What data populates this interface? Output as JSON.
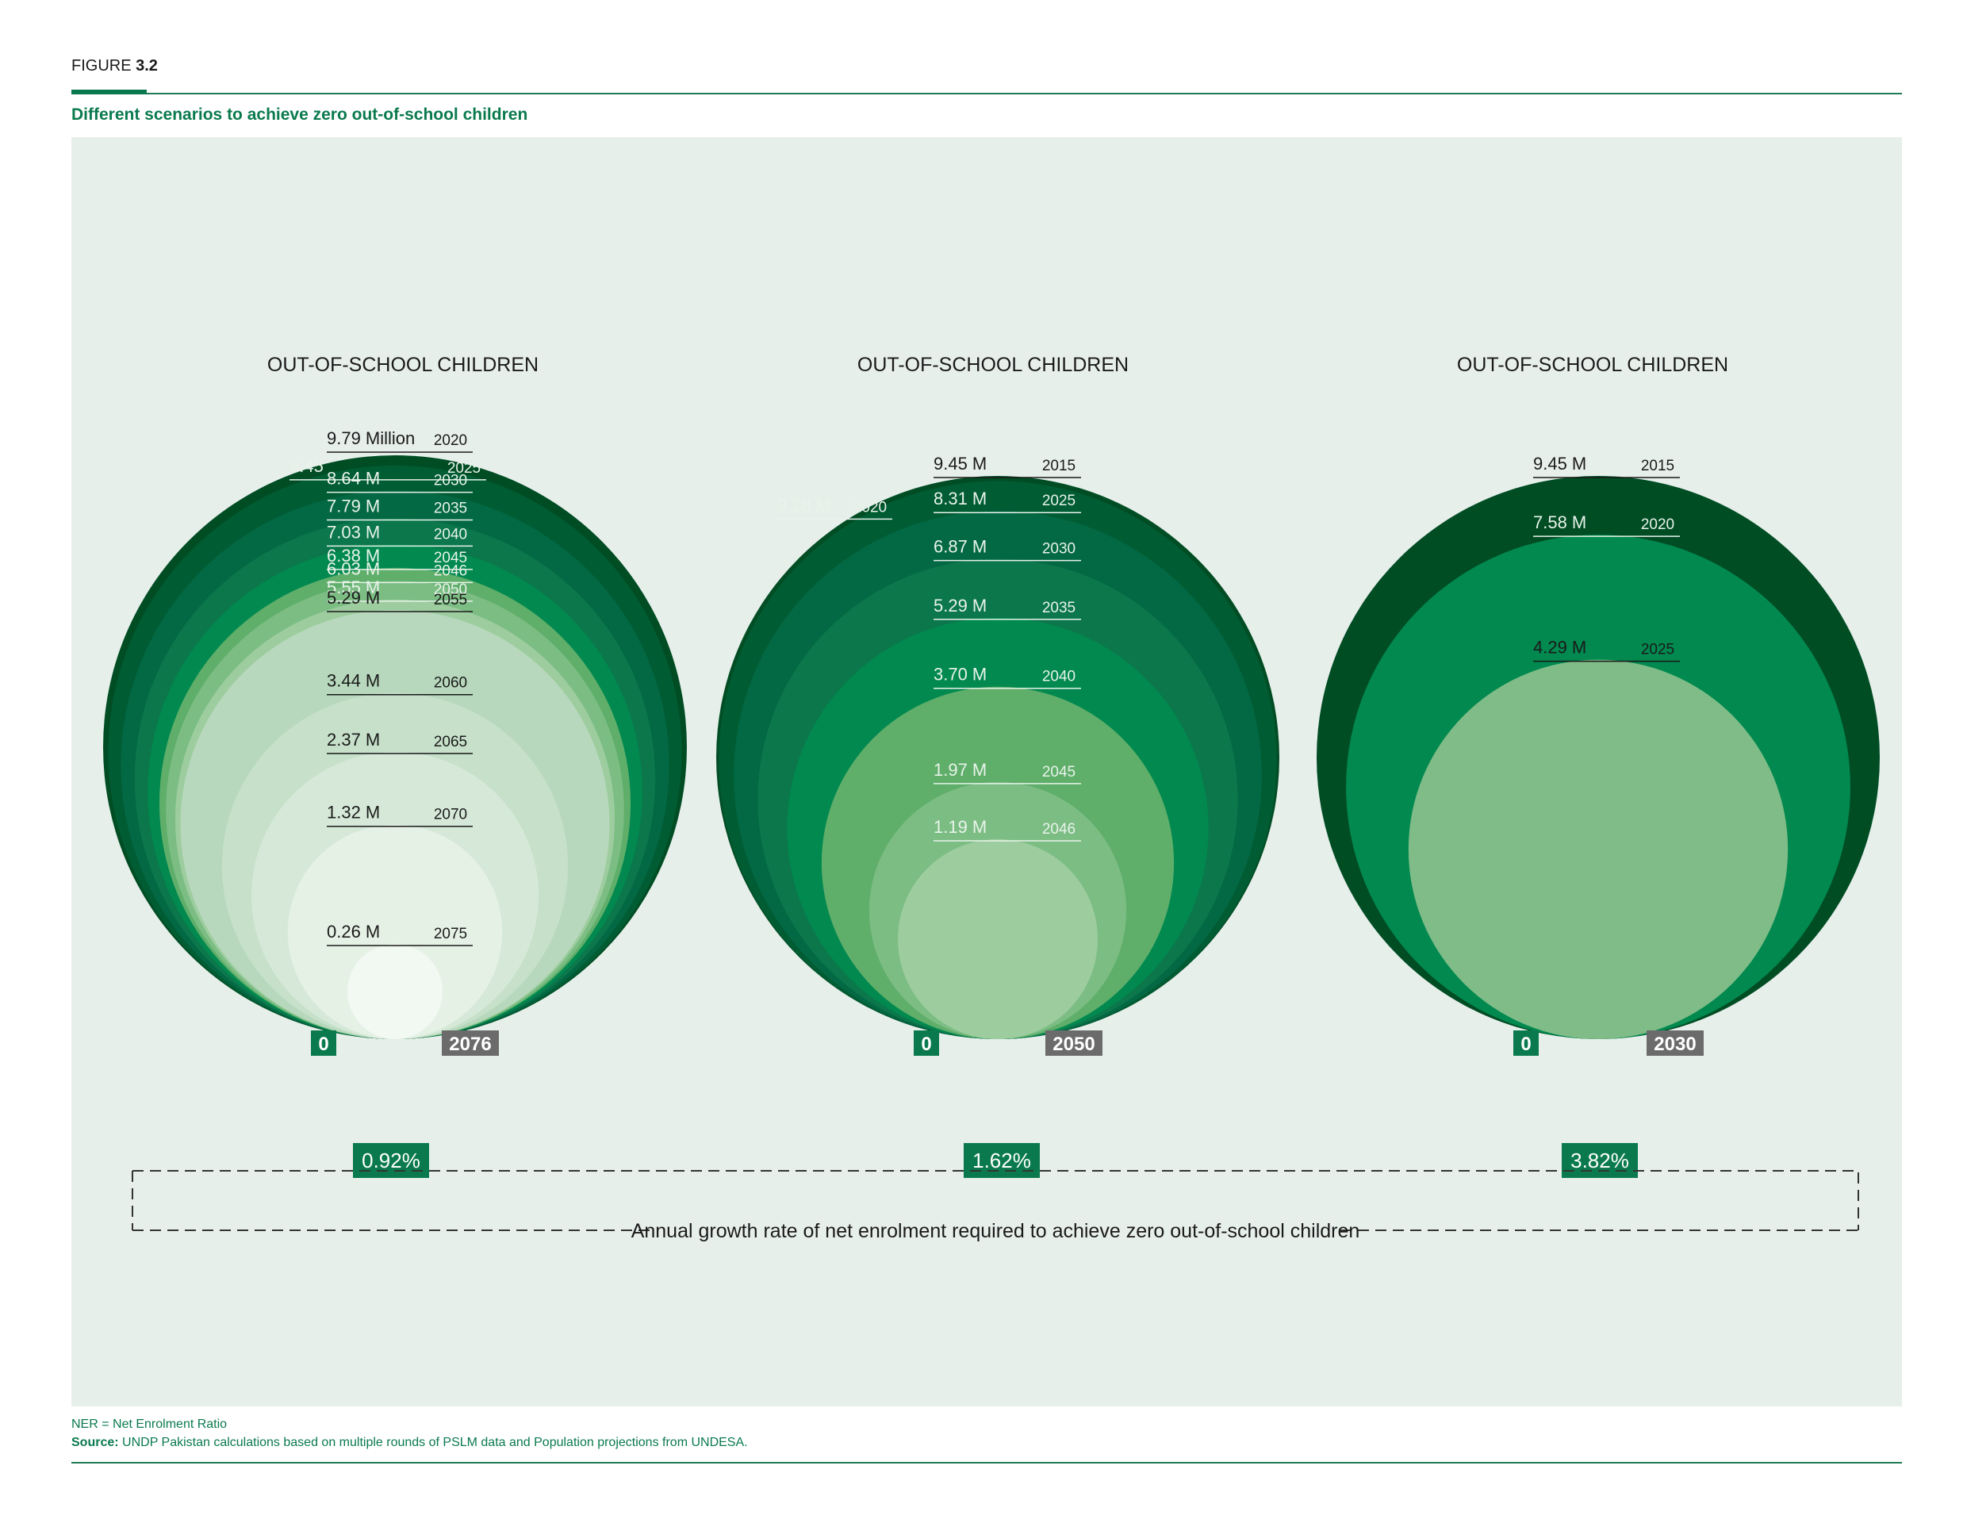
{
  "header": {
    "figure_prefix": "FIGURE",
    "figure_number": "3.2",
    "subtitle": "Different scenarios to achieve zero out-of-school children"
  },
  "chart_data": [
    {
      "type": "nested-circle",
      "title": "OUT-OF-SCHOOL CHILDREN",
      "bottom_label": "0",
      "end_year": "2076",
      "growth_rate": "0.92%",
      "points": [
        {
          "year": "2020",
          "value": 9.79,
          "label": "9.79 Million"
        },
        {
          "year": "2025",
          "value": 9.45,
          "label": "9.45"
        },
        {
          "year": "2030",
          "value": 8.64,
          "label": "8.64 M"
        },
        {
          "year": "2035",
          "value": 7.79,
          "label": "7.79 M"
        },
        {
          "year": "2040",
          "value": 7.03,
          "label": "7.03 M"
        },
        {
          "year": "2045",
          "value": 6.38,
          "label": "6.38 M"
        },
        {
          "year": "2046",
          "value": 6.03,
          "label": "6.03 M"
        },
        {
          "year": "2050",
          "value": 5.55,
          "label": "5.55 M"
        },
        {
          "year": "2055",
          "value": 5.29,
          "label": "5.29 M"
        },
        {
          "year": "2060",
          "value": 3.44,
          "label": "3.44 M"
        },
        {
          "year": "2065",
          "value": 2.37,
          "label": "2.37 M"
        },
        {
          "year": "2070",
          "value": 1.32,
          "label": "1.32 M"
        },
        {
          "year": "2075",
          "value": 0.26,
          "label": "0.26 M"
        }
      ]
    },
    {
      "type": "nested-circle",
      "title": "OUT-OF-SCHOOL CHILDREN",
      "bottom_label": "0",
      "end_year": "2050",
      "growth_rate": "1.62%",
      "points": [
        {
          "year": "2015",
          "value": 9.45,
          "label": "9.45 M"
        },
        {
          "year": "2020",
          "value": 9.28,
          "label": "9.28 M"
        },
        {
          "year": "2025",
          "value": 8.31,
          "label": "8.31 M"
        },
        {
          "year": "2030",
          "value": 6.87,
          "label": "6.87 M"
        },
        {
          "year": "2035",
          "value": 5.29,
          "label": "5.29 M"
        },
        {
          "year": "2040",
          "value": 3.7,
          "label": "3.70 M"
        },
        {
          "year": "2045",
          "value": 1.97,
          "label": "1.97 M"
        },
        {
          "year": "2046",
          "value": 1.19,
          "label": "1.19 M"
        }
      ]
    },
    {
      "type": "nested-circle",
      "title": "OUT-OF-SCHOOL CHILDREN",
      "bottom_label": "0",
      "end_year": "2030",
      "growth_rate": "3.82%",
      "points": [
        {
          "year": "2015",
          "value": 9.45,
          "label": "9.45 M"
        },
        {
          "year": "2020",
          "value": 7.58,
          "label": "7.58 M"
        },
        {
          "year": "2025",
          "value": 4.29,
          "label": "4.29 M"
        }
      ]
    }
  ],
  "annotation": "Annual growth rate of net enrolment required to achieve zero out-of-school children",
  "footer": {
    "note": "NER = Net Enrolment Ratio",
    "source_label": "Source:",
    "source_text": " UNDP Pakistan calculations based on multiple rounds of PSLM data and Population projections from UNDESA."
  },
  "colors": {
    "brand_green": "#0a7a4e",
    "panel_bg": "#e7efeb",
    "end_year_box": "#6b6b6b",
    "circle_scale": [
      "#004d24",
      "#005c33",
      "#036844",
      "#0b774b",
      "#01894f",
      "#5fae6a",
      "#7cbd84",
      "#9dcd9f",
      "#b7d8bc",
      "#c6e0ca",
      "#d6e9d8",
      "#e6f1e6",
      "#f2f8f2"
    ],
    "scenario_3_colors": [
      "#004d24",
      "#01894f",
      "#7fbc87"
    ]
  }
}
